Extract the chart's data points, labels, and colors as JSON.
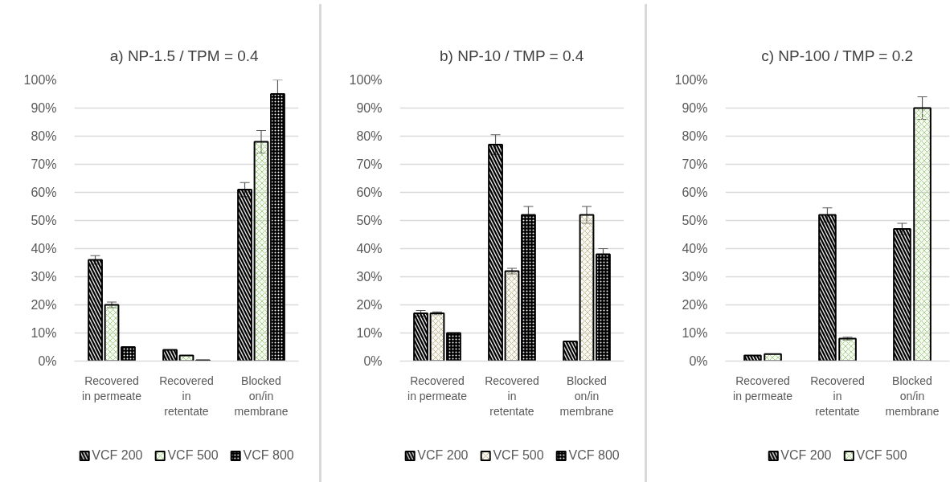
{
  "chart_data": [
    {
      "type": "bar",
      "title": "a) NP-1.5  / TPM = 0.4",
      "categories": [
        "Recovered in permeate",
        "Recovered in retentate",
        "Blocked on/in membrane"
      ],
      "series": [
        {
          "name": "VCF 200",
          "color": "#000000",
          "values": [
            36,
            4,
            61
          ],
          "errors": [
            1.5,
            null,
            2.5
          ]
        },
        {
          "name": "VCF 500",
          "color": "#a9d18e",
          "values": [
            20,
            2,
            78
          ],
          "errors": [
            1,
            null,
            4
          ]
        },
        {
          "name": "VCF 800",
          "color": "#000000",
          "values": [
            5,
            0.3,
            95
          ],
          "errors": [
            null,
            null,
            5
          ]
        }
      ],
      "ylim": [
        0,
        100
      ],
      "yticks": [
        {
          "value": 0,
          "label": "0%"
        },
        {
          "value": 10,
          "label": "10%"
        },
        {
          "value": 20,
          "label": "20%"
        },
        {
          "value": 30,
          "label": "30%"
        },
        {
          "value": 40,
          "label": "40%"
        },
        {
          "value": 50,
          "label": "50%"
        },
        {
          "value": 60,
          "label": "60%"
        },
        {
          "value": 70,
          "label": "70%"
        },
        {
          "value": 80,
          "label": "80%"
        },
        {
          "value": 90,
          "label": "90%"
        },
        {
          "value": 100,
          "label": "100%"
        }
      ],
      "grid": "y",
      "legend": "bottom"
    },
    {
      "type": "bar",
      "title": "b) NP-10 / TMP = 0.4",
      "categories": [
        "Recovered in permeate",
        "Recovered in retentate",
        "Blocked on/in membrane"
      ],
      "series": [
        {
          "name": "VCF 200",
          "color": "#000000",
          "values": [
            17,
            77,
            7
          ],
          "errors": [
            1,
            3.5,
            null
          ]
        },
        {
          "name": "VCF 500",
          "color": "#c4bd97",
          "values": [
            17,
            32,
            52
          ],
          "errors": [
            0.5,
            1,
            3
          ]
        },
        {
          "name": "VCF 800",
          "color": "#000000",
          "values": [
            10,
            52,
            38
          ],
          "errors": [
            null,
            3,
            2
          ]
        }
      ],
      "ylim": [
        0,
        100
      ],
      "yticks": [
        {
          "value": 0,
          "label": "0%"
        },
        {
          "value": 10,
          "label": "10%"
        },
        {
          "value": 20,
          "label": "20%"
        },
        {
          "value": 30,
          "label": "30%"
        },
        {
          "value": 40,
          "label": "40%"
        },
        {
          "value": 50,
          "label": "50%"
        },
        {
          "value": 60,
          "label": "60%"
        },
        {
          "value": 70,
          "label": "70%"
        },
        {
          "value": 80,
          "label": "80%"
        },
        {
          "value": 90,
          "label": "90%"
        },
        {
          "value": 100,
          "label": "100%"
        }
      ],
      "grid": "y",
      "legend": "bottom"
    },
    {
      "type": "bar",
      "title": "c) NP-100 / TMP = 0.2",
      "categories": [
        "Recovered in permeate",
        "Recovered in retentate",
        "Blocked on/in membrane"
      ],
      "series": [
        {
          "name": "VCF 200",
          "color": "#000000",
          "values": [
            2,
            52,
            47
          ],
          "errors": [
            null,
            2.5,
            2
          ]
        },
        {
          "name": "VCF 500",
          "color": "#a9d18e",
          "values": [
            2.5,
            8,
            90
          ],
          "errors": [
            null,
            0.5,
            4
          ]
        }
      ],
      "ylim": [
        0,
        100
      ],
      "yticks": [
        {
          "value": 0,
          "label": "0%"
        },
        {
          "value": 10,
          "label": "10%"
        },
        {
          "value": 20,
          "label": "20%"
        },
        {
          "value": 30,
          "label": "30%"
        },
        {
          "value": 40,
          "label": "40%"
        },
        {
          "value": 50,
          "label": "50%"
        },
        {
          "value": 60,
          "label": "60%"
        },
        {
          "value": 70,
          "label": "70%"
        },
        {
          "value": 80,
          "label": "80%"
        },
        {
          "value": 90,
          "label": "90%"
        },
        {
          "value": 100,
          "label": "100%"
        }
      ],
      "grid": "y",
      "legend": "bottom"
    }
  ]
}
